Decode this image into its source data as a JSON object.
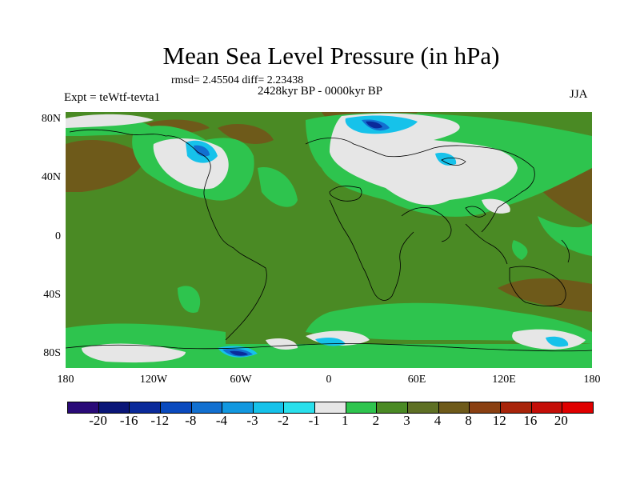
{
  "header": {
    "title": "Mean Sea Level Pressure (in hPa)",
    "stats": "rmsd= 2.45504 diff= 2.23438",
    "period": "2428kyr BP - 0000kyr BP",
    "experiment": "Expt = teWtf-tevta1",
    "season": "JJA"
  },
  "axes": {
    "lat_labels": [
      "80N",
      "40N",
      "0",
      "40S",
      "80S"
    ],
    "lon_labels": [
      "180",
      "120W",
      "60W",
      "0",
      "60E",
      "120E",
      "180"
    ]
  },
  "colorbar": {
    "labels": [
      "-20",
      "-16",
      "-12",
      "-8",
      "-4",
      "-3",
      "-2",
      "-1",
      "1",
      "2",
      "3",
      "4",
      "8",
      "12",
      "16",
      "20"
    ],
    "colors": [
      "#2a0a78",
      "#0a1678",
      "#0a2a9a",
      "#0a4abe",
      "#1270d0",
      "#1298e0",
      "#16c2ea",
      "#2ae0ec",
      "#e6e6e6",
      "#2ec44e",
      "#4a8a24",
      "#5e7024",
      "#6e5a1a",
      "#8a4012",
      "#a8240a",
      "#c40e08",
      "#e00000"
    ]
  },
  "map_colors": {
    "ocean_base": "#4a8a24",
    "green": "#2ec44e",
    "brown": "#6e5a1a",
    "white": "#e6e6e6",
    "cyan": "#16c2ea",
    "blue": "#1270d0",
    "darkblue": "#0a2a9a",
    "coast": "#000000"
  }
}
